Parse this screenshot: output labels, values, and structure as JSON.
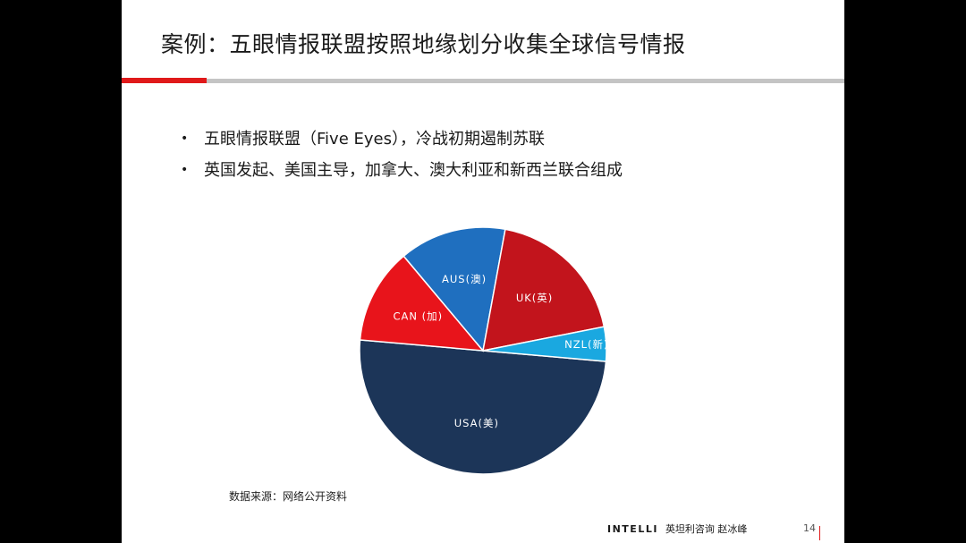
{
  "slide": {
    "title": "案例：五眼情报联盟按照地缘划分收集全球信号情报",
    "bullets": [
      "五眼情报联盟（Five Eyes），冷战初期遏制苏联",
      "英国发起、美国主导，加拿大、澳大利亚和新西兰联合组成"
    ],
    "source": "数据来源：网络公开资料",
    "brand_logo": "INTELLI",
    "brand_text": "英坦利咨询 赵冰峰",
    "page_number": "14",
    "bullet_symbol": "•"
  },
  "colors": {
    "accent_red": "#e0191a",
    "rule_gray": "#c4c4c4"
  },
  "chart_data": {
    "type": "pie",
    "categories": [
      "USA(美)",
      "CAN (加)",
      "AUS(澳)",
      "UK(英)",
      "NZL(新)"
    ],
    "values": [
      50,
      12.5,
      14,
      19,
      4.5
    ],
    "colors": [
      "#1c3558",
      "#e8141b",
      "#1f6fbf",
      "#c2141c",
      "#1aa8e0"
    ],
    "start_angle_deg": 95
  }
}
